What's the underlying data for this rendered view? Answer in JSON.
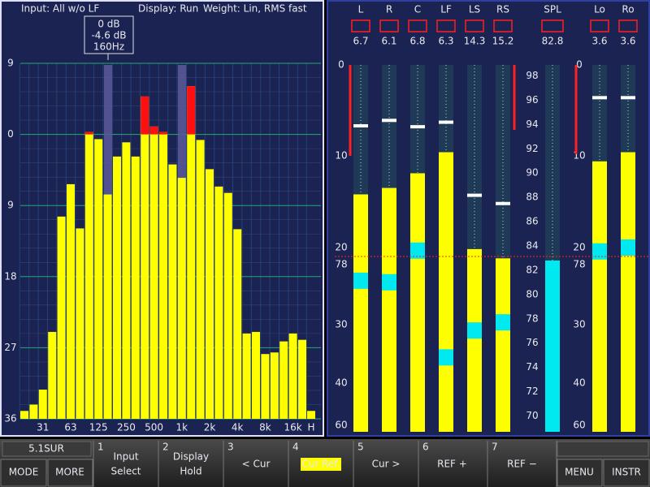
{
  "header": {
    "input": "Input: All w/o LF",
    "display": "Display: Run",
    "weight": "Weight: Lin, RMS fast"
  },
  "cursor": {
    "level": "0 dB",
    "delta": "-4.6 dB",
    "freq": "160Hz"
  },
  "spectrum": {
    "ylim": [
      -36,
      9
    ],
    "yticks": [
      9,
      0,
      {
        "value": -9,
        "label": "9"
      },
      {
        "value": -18,
        "label": "18"
      },
      {
        "value": -27,
        "label": "27"
      },
      {
        "value": -36,
        "label": "36"
      }
    ],
    "bands": [
      null,
      null,
      "31",
      null,
      null,
      "63",
      null,
      null,
      "125",
      null,
      null,
      "250",
      null,
      null,
      "500",
      null,
      null,
      "1k",
      null,
      null,
      "2k",
      null,
      null,
      "4k",
      null,
      null,
      "8k",
      null,
      null,
      "16k",
      null,
      "H"
    ],
    "values": [
      -35,
      -34.2,
      -32.3,
      -25,
      -10.4,
      -6.3,
      -11.9,
      0.3,
      -0.6,
      -7.6,
      -2.8,
      -1,
      -2.8,
      4.8,
      1,
      0.3,
      -3.8,
      -5.5,
      6.1,
      -0.7,
      -4.4,
      -6.6,
      -7.4,
      -12,
      -25.2,
      -25,
      -27.8,
      -27.6,
      -26.2,
      -25.2,
      -26,
      -35
    ],
    "overload_color": "#ff1010",
    "color": "#ffff00"
  },
  "meters": {
    "scale_ticks": [
      0,
      10,
      20,
      30,
      40,
      60
    ],
    "ref_label": "78",
    "color": "#ffff00",
    "average_color": "#00e8f0",
    "channels": [
      {
        "name": "L",
        "reading": 6.7,
        "level": 14.2,
        "average": 24.3
      },
      {
        "name": "R",
        "reading": 6.1,
        "level": 13.5,
        "average": 24.5
      },
      {
        "name": "C",
        "reading": 6.8,
        "level": 11.9,
        "average": 20.4
      },
      {
        "name": "LF",
        "reading": 6.3,
        "level": 9.6,
        "average": 35.6
      },
      {
        "name": "LS",
        "reading": 14.3,
        "level": 20.2,
        "average": 31
      },
      {
        "name": "RS",
        "reading": 15.2,
        "level": 21.4,
        "average": 29.7
      }
    ],
    "spl": {
      "name": "SPL",
      "reading": 82.8,
      "ylim": [
        68.7,
        98.9
      ],
      "yticks": [
        70,
        72,
        74,
        76,
        78,
        80,
        82,
        84,
        86,
        88,
        90,
        92,
        94,
        96,
        98
      ]
    },
    "downmix": [
      {
        "name": "Lo",
        "reading": 3.6,
        "level": 10.6,
        "average": 20.5
      },
      {
        "name": "Ro",
        "reading": 3.6,
        "level": 9.6,
        "average": 20
      }
    ]
  },
  "softkeys": {
    "mode_label": "5.1SUR",
    "keys": [
      {
        "number": "1",
        "lines": [
          "Input",
          "Select"
        ]
      },
      {
        "number": "2",
        "lines": [
          "Display",
          "Hold"
        ]
      },
      {
        "number": "3",
        "lines": [
          "< Cur"
        ]
      },
      {
        "number": "4",
        "lines": [
          "Cur Ref."
        ],
        "highlighted": true
      },
      {
        "number": "5",
        "lines": [
          "Cur >"
        ]
      },
      {
        "number": "6",
        "lines": [
          "REF +"
        ]
      },
      {
        "number": "7",
        "lines": [
          "REF −"
        ]
      }
    ],
    "bottom": [
      "MODE",
      "MORE",
      "MENU",
      "INSTR"
    ]
  }
}
